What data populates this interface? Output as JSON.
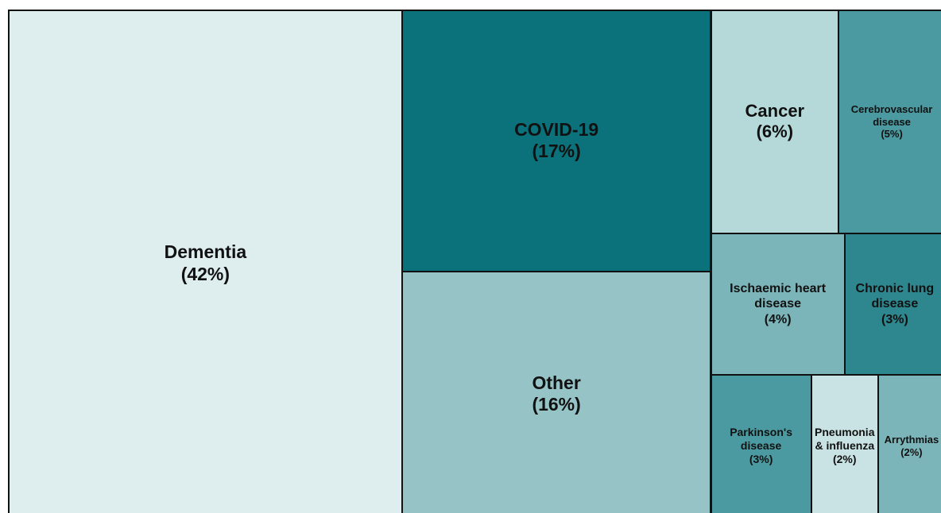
{
  "chart_data": {
    "type": "treemap",
    "categories": [
      "Dementia",
      "COVID-19",
      "Other",
      "Cancer",
      "Cerebrovascular disease",
      "Ischaemic heart disease",
      "Chronic lung disease",
      "Parkinson's disease",
      "Pneumonia & influenza",
      "Arrythmias"
    ],
    "values": [
      42,
      17,
      16,
      6,
      5,
      4,
      3,
      3,
      2,
      2
    ],
    "value_labels": [
      "(42%)",
      "(17%)",
      "(16%)",
      "(6%)",
      "(5%)",
      "(4%)",
      "(3%)",
      "(3%)",
      "(2%)",
      "(2%)"
    ],
    "colors": [
      "#deedee",
      "#0b727b",
      "#95c3c6",
      "#b5d8d9",
      "#4b9aa1",
      "#7cb5b9",
      "#2e878e",
      "#4b9aa1",
      "#c9e2e3",
      "#7cb5b9"
    ]
  }
}
